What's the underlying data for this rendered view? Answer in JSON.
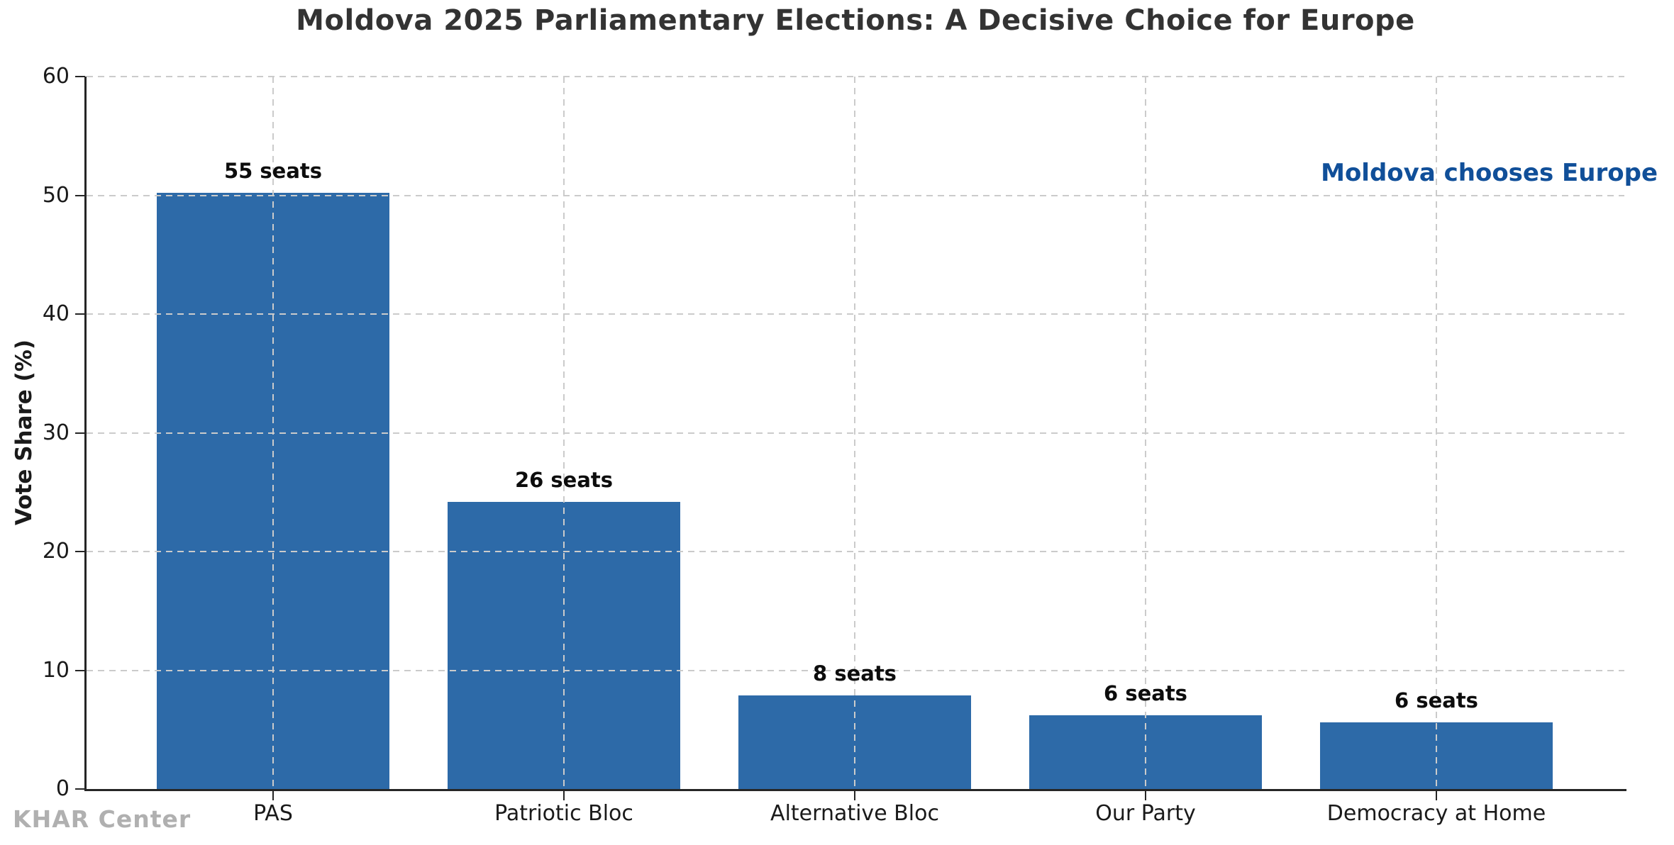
{
  "chart_data": {
    "type": "bar",
    "title": "Moldova 2025 Parliamentary Elections: A Decisive Choice for Europe",
    "xlabel": "",
    "ylabel": "Vote Share (%)",
    "ylim": [
      0,
      60
    ],
    "yticks": [
      0,
      10,
      20,
      30,
      40,
      50,
      60
    ],
    "grid": "dashed gray, horizontal and vertical, drawn over bars",
    "legend": "none",
    "categories": [
      "PAS",
      "Patriotic Bloc",
      "Alternative Bloc",
      "Our Party",
      "Democracy at Home"
    ],
    "values": [
      50.2,
      24.2,
      7.9,
      6.2,
      5.6
    ],
    "bar_labels": [
      "55 seats",
      "26 seats",
      "8 seats",
      "6 seats",
      "6 seats"
    ],
    "colors": {
      "bar": "#2d6aa8",
      "annotation": "#104f99",
      "title": "#333333",
      "watermark": "#b0b0b0",
      "grid": "#cbcbcb",
      "spine": "#262626"
    },
    "annotation": {
      "text": "Moldova chooses Europe"
    },
    "watermark": "KHAR Center"
  }
}
